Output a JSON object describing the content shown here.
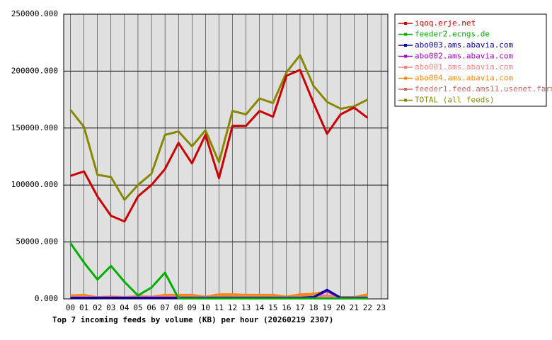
{
  "chart_data": {
    "type": "line",
    "title": "Top 7 incoming feeds by volume (KB) per hour (20260219 2307)",
    "categories": [
      "00",
      "01",
      "02",
      "03",
      "04",
      "05",
      "06",
      "07",
      "08",
      "09",
      "10",
      "11",
      "12",
      "13",
      "14",
      "15",
      "16",
      "17",
      "18",
      "19",
      "20",
      "21",
      "22",
      "23"
    ],
    "ylim": [
      0,
      250000
    ],
    "yticks": [
      {
        "value": 0,
        "label": "0.000"
      },
      {
        "value": 50000,
        "label": "50000.000"
      },
      {
        "value": 100000,
        "label": "100000.000"
      },
      {
        "value": 150000,
        "label": "150000.000"
      },
      {
        "value": 200000,
        "label": "200000.000"
      },
      {
        "value": 250000,
        "label": "250000.000"
      }
    ],
    "grid": true,
    "legend": "right",
    "series": [
      {
        "name": "iqoq.erje.net",
        "color": "#cc0000",
        "values": [
          108000,
          112000,
          90000,
          73000,
          68000,
          90000,
          100000,
          114000,
          137000,
          119000,
          144000,
          106000,
          152000,
          152000,
          165000,
          160000,
          196000,
          201000,
          172000,
          145000,
          162000,
          168000,
          159000,
          null
        ]
      },
      {
        "name": "feeder2.ecngs.de",
        "color": "#00b000",
        "values": [
          49000,
          32000,
          17000,
          29000,
          15000,
          3000,
          10000,
          23000,
          500,
          500,
          500,
          500,
          500,
          500,
          500,
          500,
          500,
          500,
          500,
          500,
          500,
          500,
          500,
          null
        ]
      },
      {
        "name": "abo003.ams.abavia.com",
        "color": "#0000aa",
        "values": [
          1000,
          1000,
          1000,
          1000,
          1000,
          1000,
          1000,
          1000,
          1000,
          1000,
          1000,
          1000,
          1000,
          1000,
          1000,
          1000,
          1000,
          1000,
          1500,
          8000,
          1000,
          1000,
          1000,
          null
        ]
      },
      {
        "name": "abo002.ams.abavia.com",
        "color": "#aa00cc",
        "values": [
          1000,
          1000,
          1000,
          1000,
          1000,
          1000,
          1000,
          1000,
          1000,
          1000,
          1000,
          1000,
          1000,
          1000,
          1000,
          1000,
          1000,
          1000,
          1500,
          7000,
          1000,
          1000,
          1000,
          null
        ]
      },
      {
        "name": "abo001.ams.abavia.com",
        "color": "#ff8080",
        "values": [
          2000,
          2000,
          1500,
          1500,
          1500,
          2000,
          2000,
          2000,
          2000,
          2000,
          2000,
          2000,
          2000,
          2000,
          2000,
          2000,
          1500,
          2000,
          2000,
          2500,
          1500,
          1500,
          2000,
          null
        ]
      },
      {
        "name": "abo004.ams.abavia.com",
        "color": "#ff8800",
        "values": [
          3000,
          3500,
          1500,
          2000,
          1500,
          2500,
          2000,
          3500,
          3500,
          3500,
          2000,
          4000,
          4000,
          3500,
          3500,
          3500,
          2000,
          4000,
          4500,
          6500,
          1500,
          1500,
          4000,
          null
        ]
      },
      {
        "name": "feeder1.feed.ams11.usenet.farm",
        "color": "#cc6666",
        "values": [
          2000,
          2000,
          1500,
          2000,
          1500,
          2000,
          2000,
          2000,
          2000,
          2000,
          2000,
          2500,
          2500,
          2500,
          2500,
          2500,
          2000,
          2500,
          2500,
          3000,
          1500,
          1500,
          2500,
          null
        ]
      },
      {
        "name": "TOTAL (all feeds)",
        "color": "#888800",
        "values": [
          166000,
          151000,
          109000,
          107000,
          87000,
          100000,
          110000,
          144000,
          147000,
          134000,
          148000,
          120000,
          165000,
          162000,
          176000,
          172000,
          199000,
          214000,
          187000,
          173000,
          167000,
          169000,
          175000,
          null
        ]
      }
    ]
  }
}
